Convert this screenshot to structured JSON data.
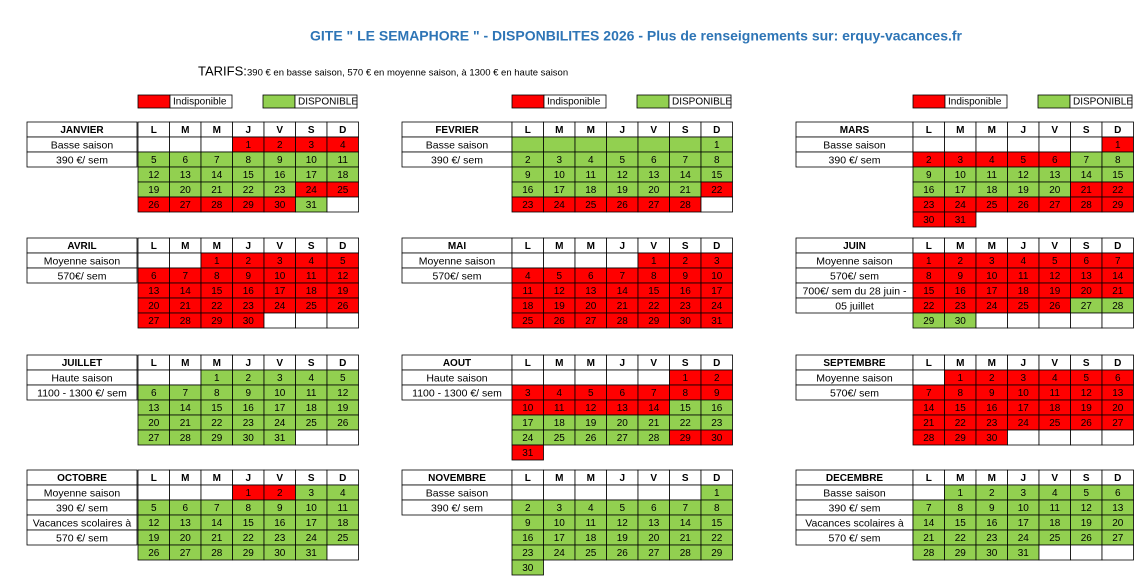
{
  "header": {
    "title": "GITE \" LE SEMAPHORE \" - DISPONBILITES 2026 - Plus de renseignements sur: erquy-vacances.fr",
    "tarifs_label": "TARIFS:",
    "tarifs_text": "390 € en basse saison, 570 € en moyenne saison, à 1300 € en haute saison"
  },
  "legend": [
    {
      "code": "u",
      "label": "Indisponible",
      "color": "#ff0000"
    },
    {
      "code": "a",
      "label": "DISPONIBLE",
      "color": "#92d050"
    }
  ],
  "weekdays": [
    "L",
    "M",
    "M",
    "J",
    "V",
    "S",
    "D"
  ],
  "months": [
    {
      "name": "JANVIER",
      "labels": [
        "Basse saison",
        "390 €/ sem"
      ],
      "days": [
        [
          null,
          null,
          null,
          1,
          2,
          3,
          4
        ],
        [
          5,
          6,
          7,
          8,
          9,
          10,
          11
        ],
        [
          12,
          13,
          14,
          15,
          16,
          17,
          18
        ],
        [
          19,
          20,
          21,
          22,
          23,
          24,
          25
        ],
        [
          26,
          27,
          28,
          29,
          30,
          31,
          null
        ]
      ],
      "status": [
        "---uuuu",
        "aaaaaaa",
        "aaaaaaa",
        "aaaaauu",
        "uuuuua-"
      ]
    },
    {
      "name": "FEVRIER",
      "labels": [
        "Basse saison",
        "390 €/ sem"
      ],
      "days": [
        [
          null,
          null,
          null,
          null,
          null,
          null,
          1
        ],
        [
          2,
          3,
          4,
          5,
          6,
          7,
          8
        ],
        [
          9,
          10,
          11,
          12,
          13,
          14,
          15
        ],
        [
          16,
          17,
          18,
          19,
          20,
          21,
          22
        ],
        [
          23,
          24,
          25,
          26,
          27,
          28,
          null
        ]
      ],
      "status": [
        "aaaaaaa",
        "aaaaaaa",
        "aaaaaaa",
        "aaaaaau",
        "uuuuuu-"
      ]
    },
    {
      "name": "MARS",
      "labels": [
        "Basse saison",
        "390 €/ sem"
      ],
      "days": [
        [
          null,
          null,
          null,
          null,
          null,
          null,
          1
        ],
        [
          2,
          3,
          4,
          5,
          6,
          7,
          8
        ],
        [
          9,
          10,
          11,
          12,
          13,
          14,
          15
        ],
        [
          16,
          17,
          18,
          19,
          20,
          21,
          22
        ],
        [
          23,
          24,
          25,
          26,
          27,
          28,
          29
        ],
        [
          30,
          31
        ]
      ],
      "status": [
        "------u",
        "uuuuuaa",
        "aaaaaaa",
        "aaaaauu",
        "uuuuuuu",
        "uu"
      ]
    },
    {
      "name": "AVRIL",
      "labels": [
        "Moyenne saison",
        "570€/ sem"
      ],
      "days": [
        [
          null,
          null,
          1,
          2,
          3,
          4,
          5
        ],
        [
          6,
          7,
          8,
          9,
          10,
          11,
          12
        ],
        [
          13,
          14,
          15,
          16,
          17,
          18,
          19
        ],
        [
          20,
          21,
          22,
          23,
          24,
          25,
          26
        ],
        [
          27,
          28,
          29,
          30,
          null,
          null,
          null
        ]
      ],
      "status": [
        "--uuuuu",
        "uuuuuuu",
        "uuuuuuu",
        "uuuuuuu",
        "uuuu---"
      ]
    },
    {
      "name": "MAI",
      "labels": [
        "Moyenne saison",
        "570€/ sem"
      ],
      "days": [
        [
          null,
          null,
          null,
          null,
          1,
          2,
          3
        ],
        [
          4,
          5,
          6,
          7,
          8,
          9,
          10
        ],
        [
          11,
          12,
          13,
          14,
          15,
          16,
          17
        ],
        [
          18,
          19,
          20,
          21,
          22,
          23,
          24
        ],
        [
          25,
          26,
          27,
          28,
          29,
          30,
          31
        ]
      ],
      "status": [
        "----uuu",
        "uuuuuuu",
        "uuuuuuu",
        "uuuuuuu",
        "uuuuuuu"
      ]
    },
    {
      "name": "JUIN",
      "labels": [
        "Moyenne saison",
        "570€/ sem",
        "700€/ sem du 28 juin -",
        "05 juillet"
      ],
      "days": [
        [
          1,
          2,
          3,
          4,
          5,
          6,
          7
        ],
        [
          8,
          9,
          10,
          11,
          12,
          13,
          14
        ],
        [
          15,
          16,
          17,
          18,
          19,
          20,
          21
        ],
        [
          22,
          23,
          24,
          25,
          26,
          27,
          28
        ],
        [
          29,
          30,
          null,
          null,
          null,
          null,
          null
        ]
      ],
      "status": [
        "uuuuuuu",
        "uuuuuuu",
        "uuuuuuu",
        "uuuuuaa",
        "aa-----"
      ]
    },
    {
      "name": "JUILLET",
      "labels": [
        "Haute saison",
        "1100 - 1300 €/ sem"
      ],
      "days": [
        [
          null,
          null,
          1,
          2,
          3,
          4,
          5
        ],
        [
          6,
          7,
          8,
          9,
          10,
          11,
          12
        ],
        [
          13,
          14,
          15,
          16,
          17,
          18,
          19
        ],
        [
          20,
          21,
          22,
          23,
          24,
          25,
          26
        ],
        [
          27,
          28,
          29,
          30,
          31,
          null,
          null
        ]
      ],
      "status": [
        "--aaaaa",
        "aaaaaaa",
        "aaaaaaa",
        "aaaaaaa",
        "aaaaa--"
      ]
    },
    {
      "name": "AOUT",
      "labels": [
        "Haute saison",
        "1100 - 1300 €/ sem"
      ],
      "days": [
        [
          null,
          null,
          null,
          null,
          null,
          1,
          2
        ],
        [
          3,
          4,
          5,
          6,
          7,
          8,
          9
        ],
        [
          10,
          11,
          12,
          13,
          14,
          15,
          16
        ],
        [
          17,
          18,
          19,
          20,
          21,
          22,
          23
        ],
        [
          24,
          25,
          26,
          27,
          28,
          29,
          30
        ],
        [
          31
        ]
      ],
      "status": [
        "-----uu",
        "uuuuuuu",
        "uuuuuaa",
        "aaaaaaa",
        "aaaaauu",
        "u"
      ]
    },
    {
      "name": "SEPTEMBRE",
      "labels": [
        "Moyenne saison",
        "570€/ sem"
      ],
      "days": [
        [
          null,
          1,
          2,
          3,
          4,
          5,
          6
        ],
        [
          7,
          8,
          9,
          10,
          11,
          12,
          13
        ],
        [
          14,
          15,
          16,
          17,
          18,
          19,
          20
        ],
        [
          21,
          22,
          23,
          24,
          25,
          26,
          27
        ],
        [
          28,
          29,
          30,
          null,
          null,
          null,
          null
        ]
      ],
      "status": [
        "-uuuuuu",
        "uuuuuuu",
        "uuuuuuu",
        "uuuuuuu",
        "uuu----"
      ]
    },
    {
      "name": "OCTOBRE",
      "labels": [
        "Moyenne saison",
        "390 €/ sem",
        "Vacances scolaires à",
        "570 €/ sem"
      ],
      "days": [
        [
          null,
          null,
          null,
          1,
          2,
          3,
          4
        ],
        [
          5,
          6,
          7,
          8,
          9,
          10,
          11
        ],
        [
          12,
          13,
          14,
          15,
          16,
          17,
          18
        ],
        [
          19,
          20,
          21,
          22,
          23,
          24,
          25
        ],
        [
          26,
          27,
          28,
          29,
          30,
          31,
          null
        ]
      ],
      "status": [
        "---uuaa",
        "aaaaaaa",
        "aaaaaaa",
        "aaaaaaa",
        "aaaaaa-"
      ]
    },
    {
      "name": "NOVEMBRE",
      "labels": [
        "Basse saison",
        "390 €/ sem"
      ],
      "days": [
        [
          null,
          null,
          null,
          null,
          null,
          null,
          1
        ],
        [
          2,
          3,
          4,
          5,
          6,
          7,
          8
        ],
        [
          9,
          10,
          11,
          12,
          13,
          14,
          15
        ],
        [
          16,
          17,
          18,
          19,
          20,
          21,
          22
        ],
        [
          23,
          24,
          25,
          26,
          27,
          28,
          29
        ],
        [
          30
        ]
      ],
      "status": [
        "------a",
        "aaaaaaa",
        "aaaaaaa",
        "aaaaaaa",
        "aaaaaaa",
        "a"
      ]
    },
    {
      "name": "DECEMBRE",
      "labels": [
        "Basse saison",
        "390 €/ sem",
        "Vacances scolaires à",
        "570 €/ sem"
      ],
      "days": [
        [
          null,
          1,
          2,
          3,
          4,
          5,
          6
        ],
        [
          7,
          8,
          9,
          10,
          11,
          12,
          13
        ],
        [
          14,
          15,
          16,
          17,
          18,
          19,
          20
        ],
        [
          21,
          22,
          23,
          24,
          25,
          26,
          27
        ],
        [
          28,
          29,
          30,
          31,
          null,
          null,
          null
        ]
      ],
      "status": [
        "-aaaaaa",
        "aaaaaaa",
        "aaaaaaa",
        "aaaaaaa",
        "aaaa---"
      ]
    }
  ]
}
